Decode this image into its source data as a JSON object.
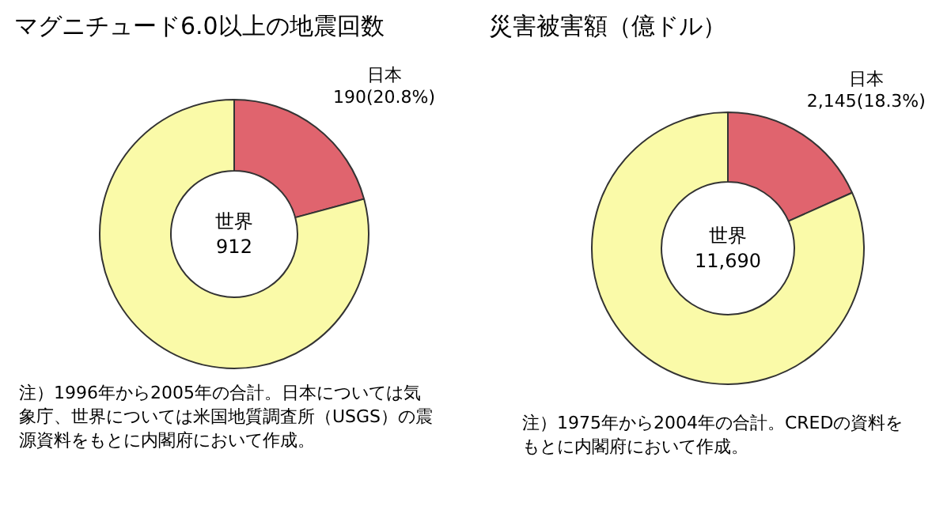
{
  "chart_data": [
    {
      "type": "donut",
      "title": "マグニチュード6.0以上の地震回数",
      "categories": [
        "日本",
        null
      ],
      "values": [
        20.8,
        79.2
      ],
      "colors": [
        "#e0646e",
        "#fafaa8"
      ],
      "value_labels": [
        "190(20.8%)",
        null
      ],
      "annotations": [
        "世界\n912",
        "注）1996年から2005年の合計。日本については気象庁、世界については米国地質調査所（USGS）の震源資料をもとに内閣府において作成。"
      ],
      "legend": false
    },
    {
      "type": "donut",
      "title": "災害被害額（億ドル）",
      "categories": [
        "日本",
        null
      ],
      "values": [
        18.3,
        81.7
      ],
      "colors": [
        "#e0646e",
        "#fafaa8"
      ],
      "value_labels": [
        "2,145(18.3%)",
        null
      ],
      "annotations": [
        "世界\n11,690",
        "注）1975年から2004年の合計。CREDの資料をもとに内閣府において作成。"
      ],
      "legend": false
    }
  ]
}
